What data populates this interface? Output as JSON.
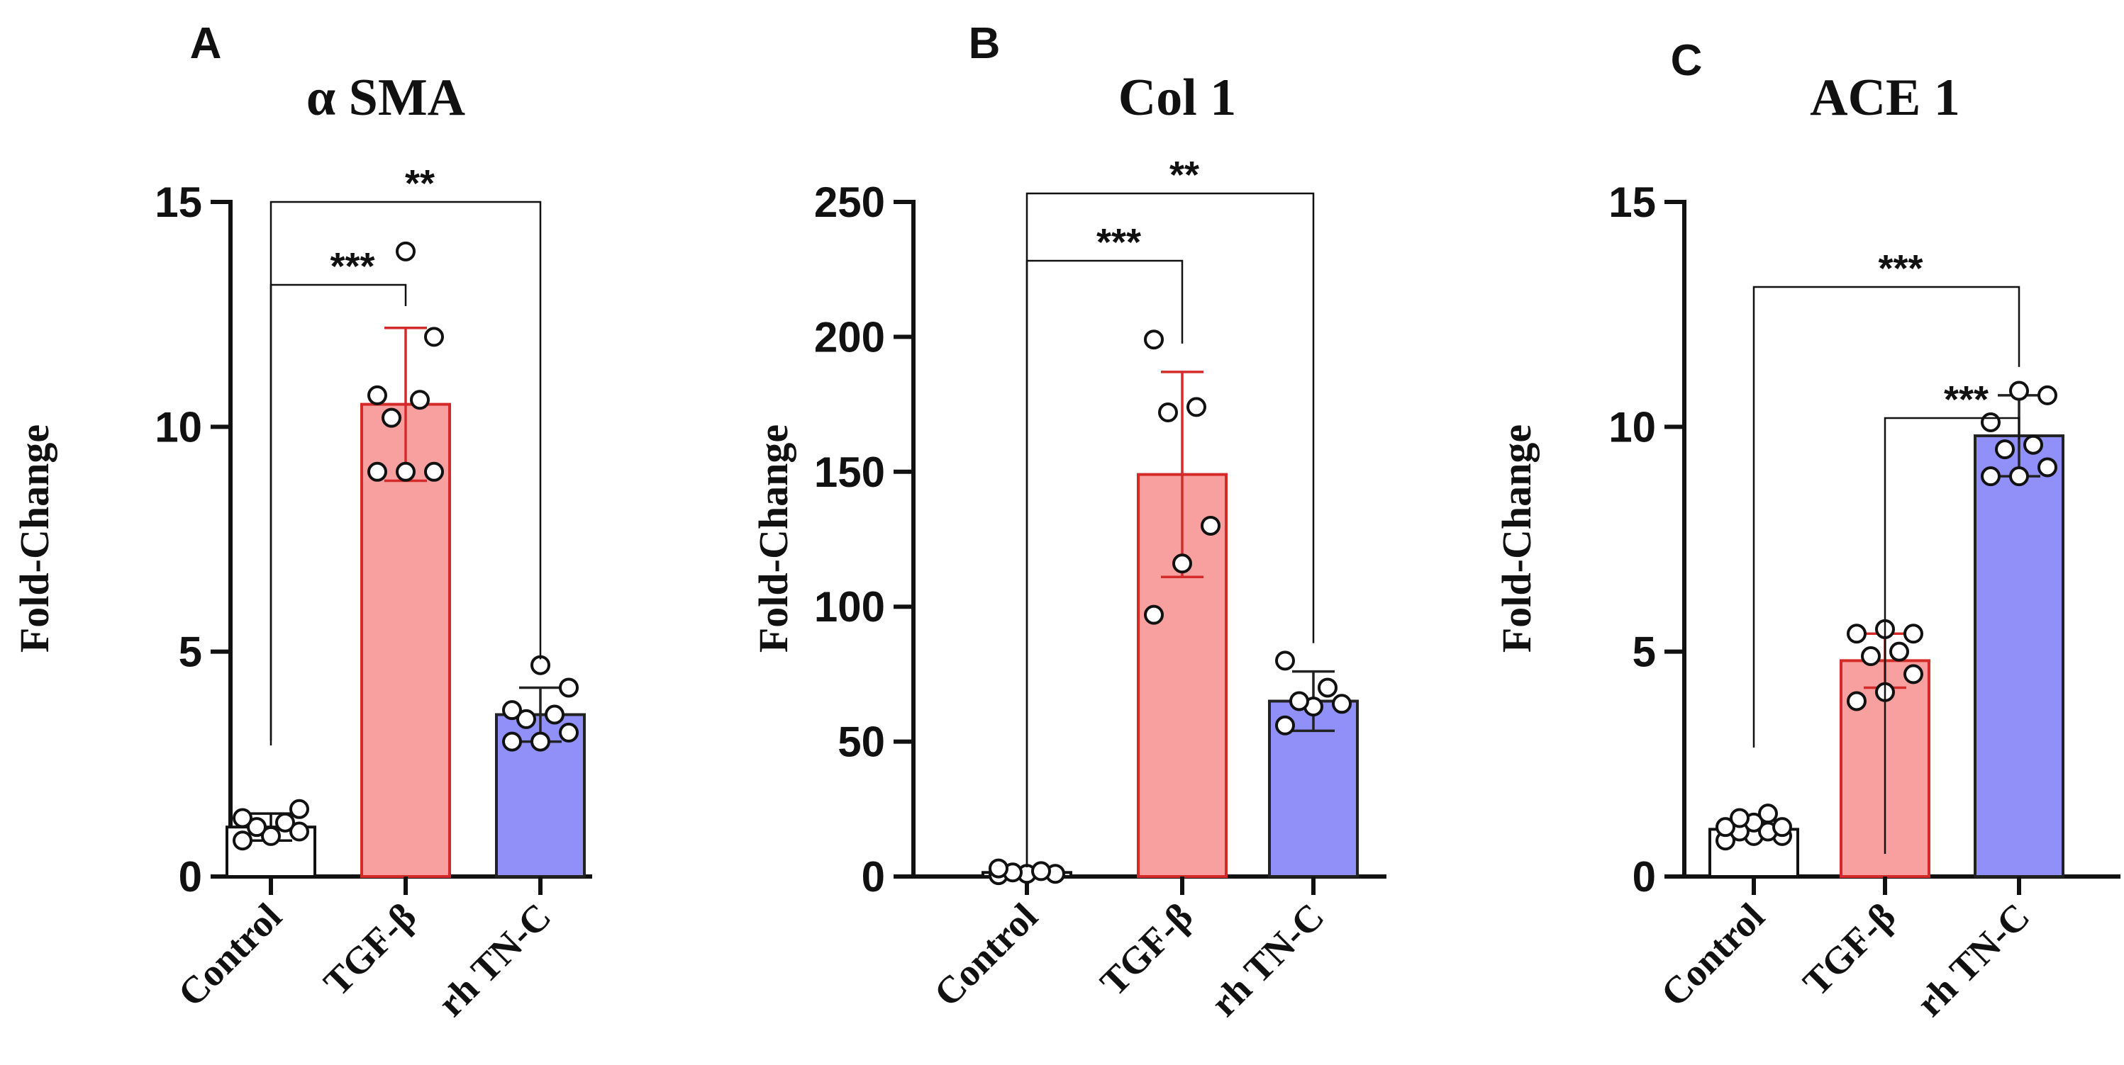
{
  "chart_data": [
    {
      "type": "bar",
      "panel_letter": "A",
      "title": "α SMA",
      "ylabel": "Fold-Change",
      "xlabel": "",
      "ylim": [
        0,
        15
      ],
      "yticks": [
        0,
        5,
        10,
        15
      ],
      "categories": [
        "Control",
        "TGF-β",
        "rh TN-C"
      ],
      "values": [
        1.1,
        10.5,
        3.6
      ],
      "errors": [
        0.3,
        1.7,
        0.6
      ],
      "points": [
        [
          0.8,
          0.9,
          1.0,
          1.1,
          1.2,
          1.3,
          1.5
        ],
        [
          9.0,
          9.0,
          9.0,
          10.2,
          10.6,
          10.7,
          12.0,
          13.9
        ],
        [
          3.0,
          3.0,
          3.2,
          3.5,
          3.6,
          3.7,
          4.2,
          4.7
        ]
      ],
      "fill_colors": [
        "#ffffff",
        "#f8a0a0",
        "#9090f8"
      ],
      "edge_colors": [
        "#111111",
        "#d42a2a",
        "#222222"
      ],
      "comparisons": [
        {
          "from": 0,
          "to": 1,
          "label": "***"
        },
        {
          "from": 0,
          "to": 2,
          "label": "**"
        }
      ]
    },
    {
      "type": "bar",
      "panel_letter": "B",
      "title": "Col 1",
      "ylabel": "Fold-Change",
      "xlabel": "",
      "ylim": [
        0,
        250
      ],
      "yticks": [
        0,
        50,
        100,
        150,
        200,
        250
      ],
      "categories": [
        "Control",
        "TGF-β",
        "rh TN-C"
      ],
      "values": [
        1.5,
        149,
        65
      ],
      "errors": [
        1.0,
        38,
        11
      ],
      "points": [
        [
          0.5,
          1.0,
          1.0,
          1.5,
          2.0,
          3.0
        ],
        [
          97,
          116,
          130,
          172,
          174,
          199
        ],
        [
          56,
          63,
          64,
          65,
          70,
          80
        ]
      ],
      "fill_colors": [
        "#ffffff",
        "#f8a0a0",
        "#9090f8"
      ],
      "edge_colors": [
        "#111111",
        "#d42a2a",
        "#222222"
      ],
      "comparisons": [
        {
          "from": 0,
          "to": 1,
          "label": "***"
        },
        {
          "from": 0,
          "to": 2,
          "label": "**"
        }
      ]
    },
    {
      "type": "bar",
      "panel_letter": "C",
      "title": "ACE 1",
      "ylabel": "Fold-Change",
      "xlabel": "",
      "ylim": [
        0,
        15
      ],
      "yticks": [
        0,
        5,
        10,
        15
      ],
      "categories": [
        "Control",
        "TGF-β",
        "rh TN-C"
      ],
      "values": [
        1.05,
        4.8,
        9.8
      ],
      "errors": [
        0.2,
        0.6,
        0.9
      ],
      "points": [
        [
          0.8,
          0.9,
          0.9,
          1.0,
          1.0,
          1.1,
          1.1,
          1.2,
          1.3,
          1.4
        ],
        [
          3.9,
          4.1,
          4.5,
          4.9,
          5.0,
          5.4,
          5.4,
          5.5
        ],
        [
          8.9,
          8.9,
          9.1,
          9.5,
          9.6,
          10.1,
          10.7,
          10.8
        ]
      ],
      "fill_colors": [
        "#ffffff",
        "#f8a0a0",
        "#9090f8"
      ],
      "edge_colors": [
        "#111111",
        "#d42a2a",
        "#222222"
      ],
      "comparisons": [
        {
          "from": 1,
          "to": 2,
          "label": "***"
        },
        {
          "from": 0,
          "to": 2,
          "label": "***"
        }
      ]
    }
  ]
}
